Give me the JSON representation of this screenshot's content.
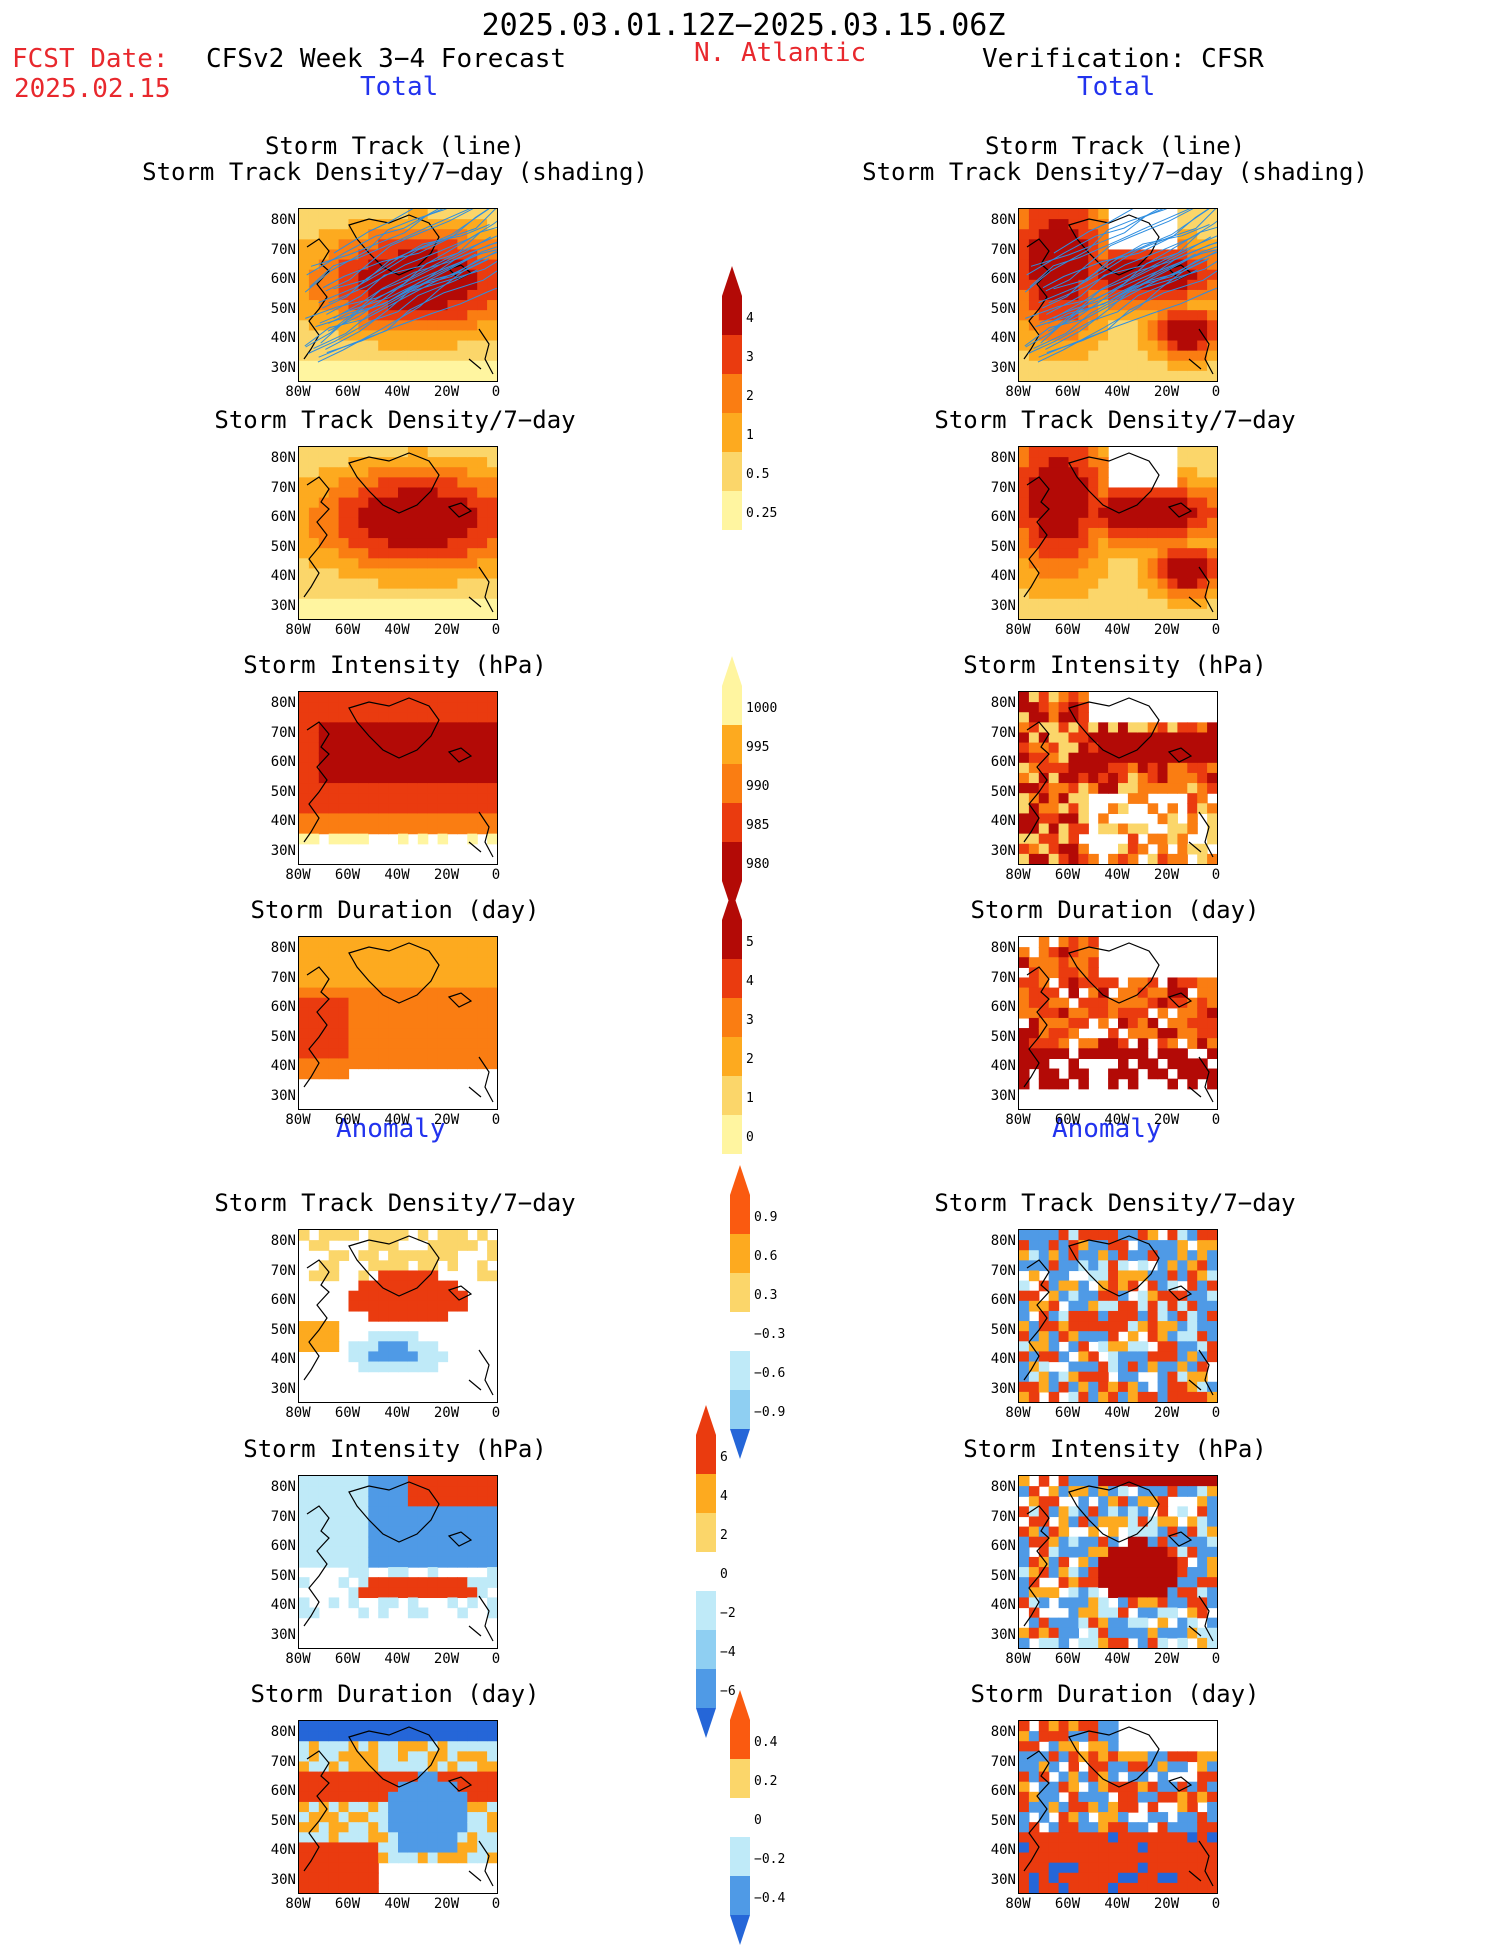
{
  "header": {
    "date_range": "2025.03.01.12Z−2025.03.15.06Z",
    "fcst_label": "FCST Date:",
    "fcst_date": "2025.02.15",
    "model_title": "CFSv2 Week 3−4 Forecast",
    "region": "N. Atlantic",
    "verification": "Verification: CFSR",
    "total_left": "Total",
    "total_right": "Total",
    "anomaly_left": "Anomaly",
    "anomaly_right": "Anomaly"
  },
  "panel_titles": {
    "track_line": "Storm Track (line)",
    "track_shading": "Storm Track Density/7−day (shading)",
    "density": "Storm Track Density/7−day",
    "intensity": "Storm Intensity (hPa)",
    "duration": "Storm Duration (day)"
  },
  "axes": {
    "lat_labels": [
      "80N",
      "70N",
      "60N",
      "50N",
      "40N",
      "30N"
    ],
    "lon_labels": [
      "80W",
      "60W",
      "40W",
      "20W",
      "0"
    ]
  },
  "colorbars": {
    "density_total": [
      "4",
      "3",
      "2",
      "1",
      "0.5",
      "0.25"
    ],
    "intensity_total": [
      "1000",
      "995",
      "990",
      "985",
      "980"
    ],
    "duration_total": [
      "5",
      "4",
      "3",
      "2",
      "1",
      "0"
    ],
    "density_anom": [
      "0.9",
      "0.6",
      "0.3",
      "−0.3",
      "−0.6",
      "−0.9"
    ],
    "intensity_anom": [
      "6",
      "4",
      "2",
      "0",
      "−2",
      "−4",
      "−6"
    ],
    "duration_anom": [
      "0.4",
      "0.2",
      "0",
      "−0.2",
      "−0.4"
    ]
  },
  "colors": {
    "warm": [
      "#fff5a0",
      "#fbd66a",
      "#fdaa1f",
      "#fa7d12",
      "#ea3b0f",
      "#b30a06"
    ],
    "cool": [
      "#bfeaf8",
      "#8fcff2",
      "#4f9ae6",
      "#2566d8"
    ],
    "track": "#2e8ee0",
    "title_red": "#e8282d",
    "title_blue": "#2233ee"
  }
}
